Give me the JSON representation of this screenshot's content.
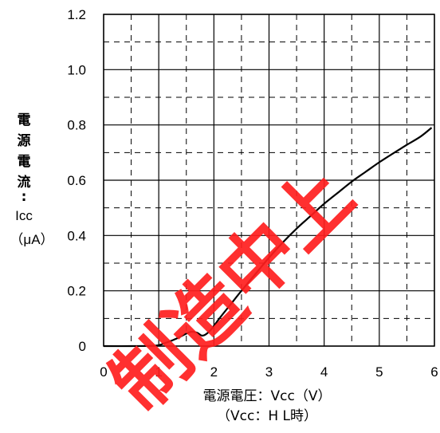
{
  "chart_data": {
    "type": "line",
    "title": "",
    "xlabel": "電源電圧：Vcc（V）",
    "xlabel_sub": "（Vcc：H L時）",
    "ylabel_chars": [
      "電",
      "源",
      "電",
      "流",
      ":"
    ],
    "ylabel_symbol": "Icc",
    "ylabel_unit": "（μA）",
    "xlim": [
      0,
      6
    ],
    "ylim": [
      0,
      1.2
    ],
    "xticks": [
      0,
      1,
      2,
      3,
      4,
      5,
      6
    ],
    "xtick_labels": [
      "0",
      "1",
      "2",
      "3",
      "4",
      "5",
      "6"
    ],
    "yticks": [
      0,
      0.2,
      0.4,
      0.6,
      0.8,
      1.0,
      1.2
    ],
    "ytick_labels": [
      "0",
      "0.2",
      "0.4",
      "0.6",
      "0.8",
      "1.0",
      "1.2"
    ],
    "grid": {
      "major": true,
      "minor_dashed": true
    },
    "series": [
      {
        "x": [
          0,
          0.5,
          0.95,
          1.1,
          1.3,
          1.5,
          1.6,
          1.7,
          1.78,
          1.85,
          1.95,
          2.1,
          2.3,
          2.5,
          2.75,
          3.0,
          3.25,
          3.5,
          3.75,
          4.0,
          4.25,
          4.5,
          4.75,
          5.0,
          5.25,
          5.5,
          5.75,
          5.95
        ],
        "y": [
          0,
          0,
          0.002,
          0.01,
          0.025,
          0.045,
          0.052,
          0.048,
          0.038,
          0.042,
          0.06,
          0.1,
          0.15,
          0.2,
          0.26,
          0.32,
          0.375,
          0.425,
          0.47,
          0.515,
          0.555,
          0.595,
          0.63,
          0.665,
          0.697,
          0.728,
          0.758,
          0.79
        ]
      }
    ],
    "watermark": "制造中上"
  }
}
